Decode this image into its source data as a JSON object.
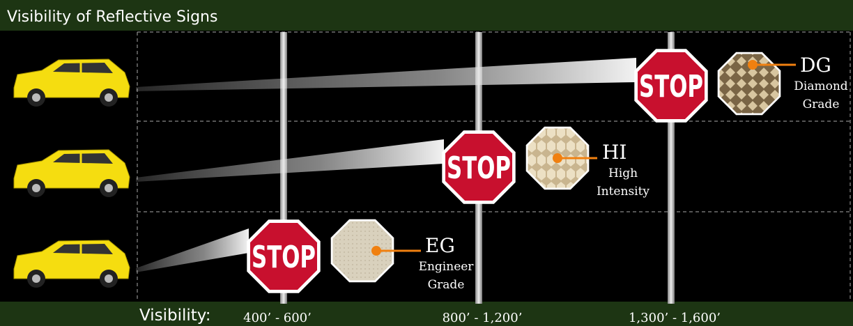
{
  "header": {
    "title": "Visibility of Reflective Signs"
  },
  "signs": [
    {
      "stop": "STOP",
      "code": "DG",
      "name_lines": [
        "Diamond",
        "Grade"
      ]
    },
    {
      "stop": "STOP",
      "code": "HI",
      "name_lines": [
        "High",
        "Intensity"
      ]
    },
    {
      "stop": "STOP",
      "code": "EG",
      "name_lines": [
        "Engineer",
        "Grade"
      ]
    }
  ],
  "footer": {
    "label": "Visibility:",
    "ranges": [
      "400’ - 600’",
      "800’ - 1,200’",
      "1,300’ - 1,600’"
    ]
  }
}
